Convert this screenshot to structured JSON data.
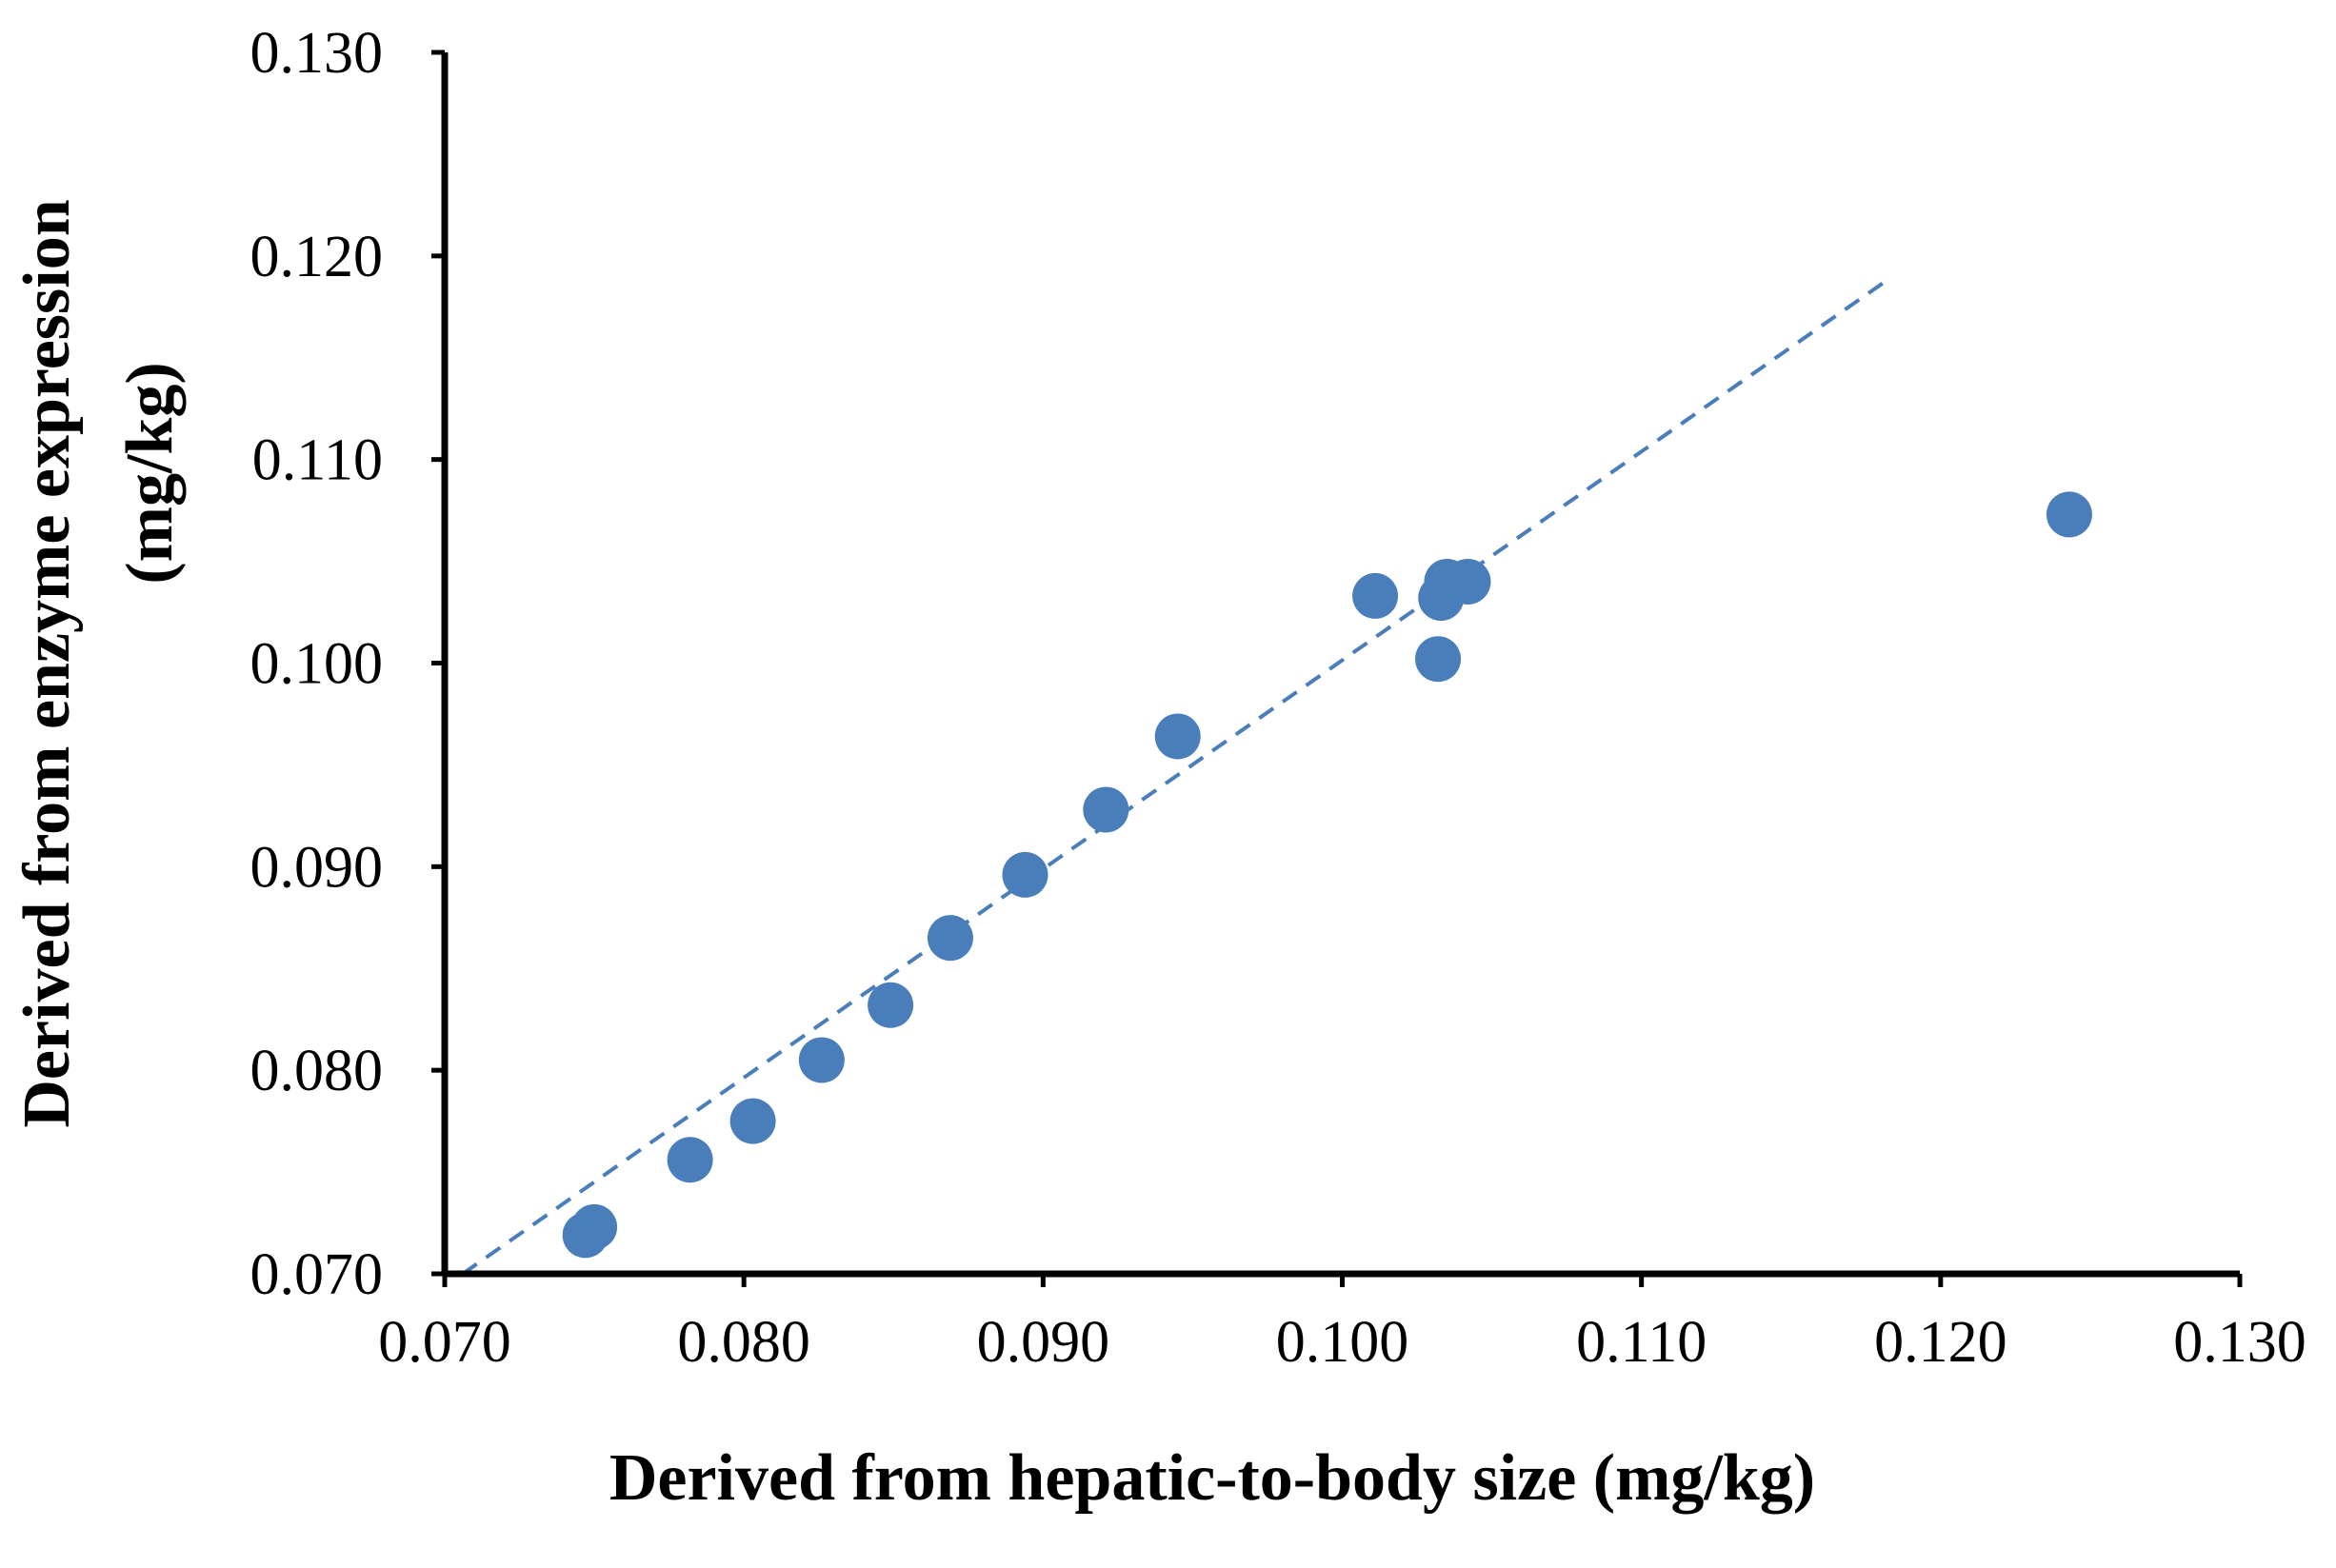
{
  "chart_data": {
    "type": "scatter",
    "title": "",
    "xlabel": "Derived from hepatic-to-body size  (mg/kg)",
    "ylabel_lines": [
      "Derived from enzyme expression",
      "(mg/kg)"
    ],
    "xlim": [
      0.07,
      0.13
    ],
    "ylim": [
      0.07,
      0.13
    ],
    "x_ticks": [
      "0.070",
      "0.080",
      "0.090",
      "0.100",
      "0.110",
      "0.120",
      "0.130"
    ],
    "y_ticks": [
      "0.070",
      "0.080",
      "0.090",
      "0.100",
      "0.110",
      "0.120",
      "0.130"
    ],
    "grid": false,
    "legend": "none",
    "series": [
      {
        "name": "data",
        "color": "#4a7ebb",
        "points": [
          {
            "x": 0.0747,
            "y": 0.0719
          },
          {
            "x": 0.075,
            "y": 0.0723
          },
          {
            "x": 0.0782,
            "y": 0.0756
          },
          {
            "x": 0.0803,
            "y": 0.0775
          },
          {
            "x": 0.0826,
            "y": 0.0805
          },
          {
            "x": 0.0849,
            "y": 0.0832
          },
          {
            "x": 0.0869,
            "y": 0.0865
          },
          {
            "x": 0.0894,
            "y": 0.0896
          },
          {
            "x": 0.0921,
            "y": 0.0928
          },
          {
            "x": 0.0945,
            "y": 0.0964
          },
          {
            "x": 0.1011,
            "y": 0.1033
          },
          {
            "x": 0.1032,
            "y": 0.1002
          },
          {
            "x": 0.1033,
            "y": 0.1032
          },
          {
            "x": 0.1035,
            "y": 0.104
          },
          {
            "x": 0.1042,
            "y": 0.104
          },
          {
            "x": 0.1243,
            "y": 0.1073
          }
        ]
      }
    ],
    "trendline": {
      "color": "#4a7ebb",
      "style": "dashed",
      "from": {
        "x": 0.0706,
        "y": 0.07
      },
      "to": {
        "x": 0.1183,
        "y": 0.1189
      }
    }
  }
}
